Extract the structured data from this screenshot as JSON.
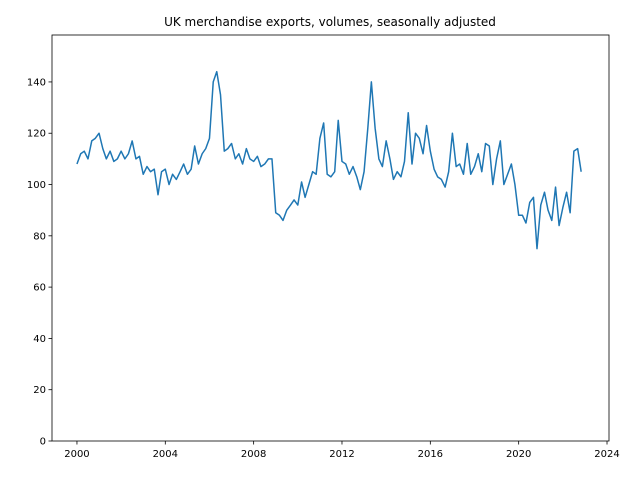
{
  "chart_data": {
    "type": "line",
    "title": "UK merchandise exports, volumes, seasonally adjusted",
    "x": [
      2000,
      2000.17,
      2000.33,
      2000.5,
      2000.67,
      2000.83,
      2001,
      2001.17,
      2001.33,
      2001.5,
      2001.67,
      2001.83,
      2002,
      2002.17,
      2002.33,
      2002.5,
      2002.67,
      2002.83,
      2003,
      2003.17,
      2003.33,
      2003.5,
      2003.67,
      2003.83,
      2004,
      2004.17,
      2004.33,
      2004.5,
      2004.67,
      2004.83,
      2005,
      2005.17,
      2005.33,
      2005.5,
      2005.67,
      2005.83,
      2006,
      2006.17,
      2006.33,
      2006.5,
      2006.67,
      2006.83,
      2007,
      2007.17,
      2007.33,
      2007.5,
      2007.67,
      2007.83,
      2008,
      2008.17,
      2008.33,
      2008.5,
      2008.67,
      2008.83,
      2009,
      2009.17,
      2009.33,
      2009.5,
      2009.67,
      2009.83,
      2010,
      2010.17,
      2010.33,
      2010.5,
      2010.67,
      2010.83,
      2011,
      2011.17,
      2011.33,
      2011.5,
      2011.67,
      2011.83,
      2012,
      2012.17,
      2012.33,
      2012.5,
      2012.67,
      2012.83,
      2013,
      2013.17,
      2013.33,
      2013.5,
      2013.67,
      2013.83,
      2014,
      2014.17,
      2014.33,
      2014.5,
      2014.67,
      2014.83,
      2015,
      2015.17,
      2015.33,
      2015.5,
      2015.67,
      2015.83,
      2016,
      2016.17,
      2016.33,
      2016.5,
      2016.67,
      2016.83,
      2017,
      2017.17,
      2017.33,
      2017.5,
      2017.67,
      2017.83,
      2018,
      2018.17,
      2018.33,
      2018.5,
      2018.67,
      2018.83,
      2019,
      2019.17,
      2019.33,
      2019.5,
      2019.67,
      2019.83,
      2020,
      2020.17,
      2020.33,
      2020.5,
      2020.67,
      2020.83,
      2021,
      2021.17,
      2021.33,
      2021.5,
      2021.67,
      2021.83,
      2022,
      2022.17,
      2022.33,
      2022.5,
      2022.67,
      2022.83
    ],
    "series": [
      {
        "color": "#1f77b4",
        "values": [
          108,
          112,
          113,
          110,
          117,
          118,
          120,
          114,
          110,
          113,
          109,
          110,
          113,
          110,
          112,
          117,
          110,
          111,
          104,
          107,
          105,
          106,
          96,
          105,
          106,
          100,
          104,
          102,
          105,
          108,
          104,
          106,
          115,
          108,
          112,
          114,
          118,
          140,
          144,
          135,
          113,
          114,
          116,
          110,
          112,
          108,
          114,
          110,
          109,
          111,
          107,
          108,
          110,
          110,
          89,
          88,
          86,
          90,
          92,
          94,
          92,
          101,
          95,
          100,
          105,
          104,
          118,
          124,
          104,
          103,
          105,
          125,
          109,
          108,
          104,
          107,
          103,
          98,
          105,
          122,
          140,
          122,
          110,
          107,
          117,
          110,
          102,
          105,
          103,
          109,
          128,
          108,
          120,
          118,
          112,
          123,
          113,
          106,
          103,
          102,
          99,
          105,
          120,
          107,
          108,
          104,
          116,
          104,
          107,
          112,
          105,
          116,
          115,
          100,
          110,
          117,
          100,
          104,
          108,
          100,
          88,
          88,
          85,
          93,
          95,
          75,
          92,
          97,
          90,
          86,
          99,
          84,
          91,
          97,
          89,
          113,
          114,
          105
        ]
      }
    ],
    "xlim": [
      1998.87,
      2024.09
    ],
    "ylim": [
      0,
      158.3
    ],
    "xticks": [
      2000,
      2004,
      2008,
      2012,
      2016,
      2020,
      2024
    ],
    "yticks": [
      0,
      20,
      40,
      60,
      80,
      100,
      120,
      140
    ]
  }
}
